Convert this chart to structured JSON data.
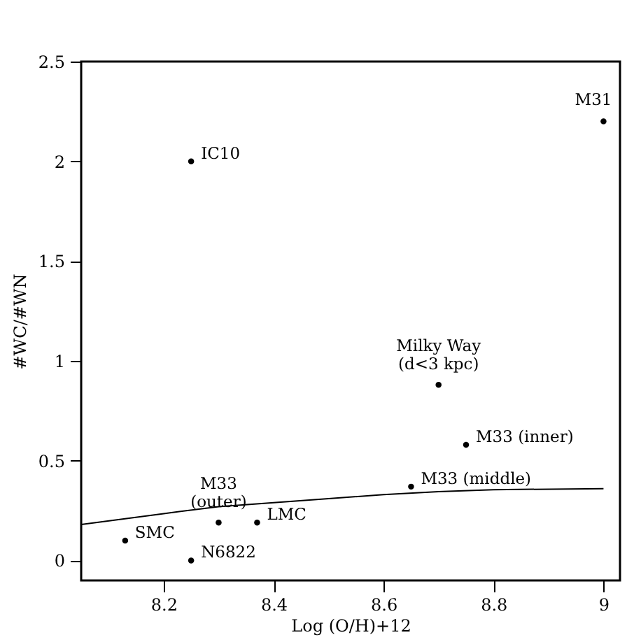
{
  "chart_data": {
    "type": "scatter",
    "xlabel": "Log (O/H)+12",
    "ylabel": "#WC/#WN",
    "xlim": [
      8.05,
      9.03
    ],
    "ylim": [
      -0.1,
      2.5
    ],
    "xticks": [
      8.2,
      8.4,
      8.6,
      8.8,
      9
    ],
    "yticks": [
      0,
      0.5,
      1,
      1.5,
      2,
      2.5
    ],
    "grid": false,
    "series": [
      {
        "type": "scatter",
        "marker": "circle",
        "color": "#000000",
        "x": [
          8.13,
          8.25,
          8.3,
          8.37,
          8.25,
          8.65,
          8.7,
          8.75,
          9.0
        ],
        "values": [
          0.1,
          0,
          0.19,
          0.19,
          2.0,
          0.37,
          0.88,
          0.58,
          2.2
        ]
      },
      {
        "type": "line",
        "color": "#000000",
        "line_style": "solid",
        "x": [
          8.05,
          8.2,
          8.3,
          8.4,
          8.5,
          8.6,
          8.7,
          8.8,
          9.0
        ],
        "values": [
          0.18,
          0.235,
          0.27,
          0.29,
          0.31,
          0.33,
          0.345,
          0.355,
          0.36
        ]
      }
    ],
    "annotations": [
      {
        "text": "SMC",
        "x": 8.13,
        "y": 0.1
      },
      {
        "text": "N6822",
        "x": 8.25,
        "y": 0
      },
      {
        "text": "M33\n(outer)",
        "x": 8.3,
        "y": 0.19
      },
      {
        "text": "LMC",
        "x": 8.37,
        "y": 0.19
      },
      {
        "text": "IC10",
        "x": 8.25,
        "y": 2.0
      },
      {
        "text": "M33 (middle)",
        "x": 8.65,
        "y": 0.37
      },
      {
        "text": "Milky Way\n(d<3 kpc)",
        "x": 8.7,
        "y": 0.88
      },
      {
        "text": "M33 (inner)",
        "x": 8.75,
        "y": 0.58
      },
      {
        "text": "M31",
        "x": 9.0,
        "y": 2.2
      }
    ]
  }
}
